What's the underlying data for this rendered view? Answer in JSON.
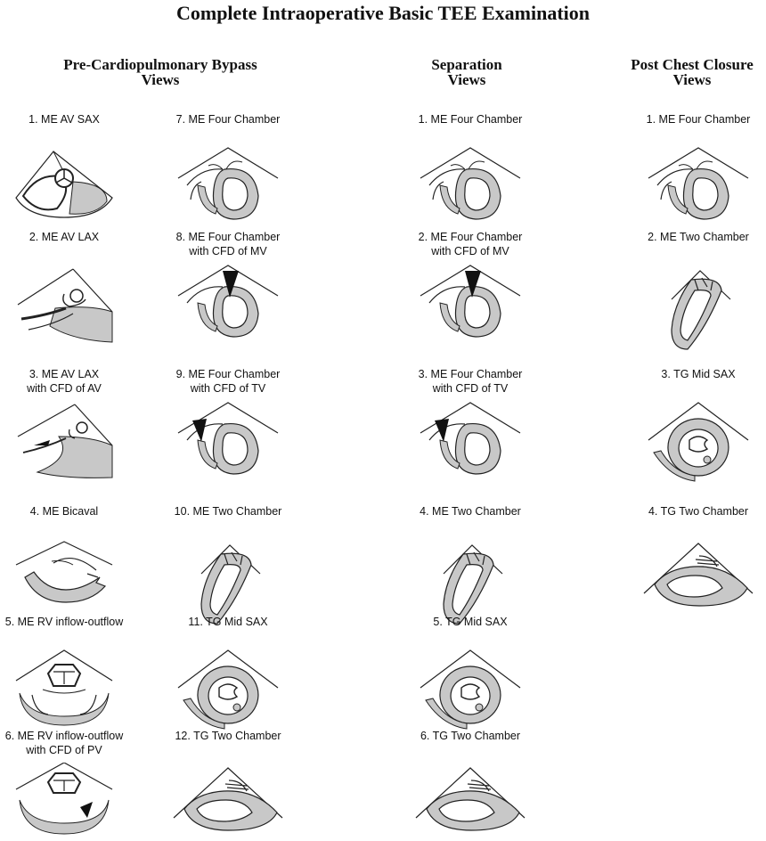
{
  "title": "Complete Intraoperative Basic TEE Examination",
  "headers": {
    "pre": [
      "Pre-Cardiopulmonary Bypass",
      "Views"
    ],
    "sep": [
      "Separation",
      "Views"
    ],
    "post": [
      "Post Chest Closure",
      "Views"
    ]
  },
  "views": {
    "pre1": {
      "line1": "1.  ME  AV  SAX",
      "line2": "",
      "icon": "av-sax-icon"
    },
    "pre2": {
      "line1": "2.  ME  AV  LAX",
      "line2": "",
      "icon": "av-lax-icon"
    },
    "pre3": {
      "line1": "3.  ME  AV  LAX",
      "line2": "with CFD of AV",
      "icon": "av-lax-cfd-icon"
    },
    "pre4": {
      "line1": "4.  ME  Bicaval",
      "line2": "",
      "icon": "bicaval-icon"
    },
    "pre5": {
      "line1": "5.  ME  RV  inflow-outflow",
      "line2": "",
      "icon": "rv-inflow-outflow-icon"
    },
    "pre6": {
      "line1": "6.  ME RV  inflow-outflow",
      "line2": "with CFD of PV",
      "icon": "rv-inflow-outflow-cfd-icon"
    },
    "pre7": {
      "line1": "7.  ME  Four  Chamber",
      "line2": "",
      "icon": "four-chamber-icon"
    },
    "pre8": {
      "line1": "8.  ME  Four  Chamber",
      "line2": "with CFD of MV",
      "icon": "four-chamber-cfd-mv-icon"
    },
    "pre9": {
      "line1": "9.  ME  Four  Chamber",
      "line2": "with CFD of TV",
      "icon": "four-chamber-cfd-tv-icon"
    },
    "pre10": {
      "line1": "10.  ME  Two  Chamber",
      "line2": "",
      "icon": "two-chamber-icon"
    },
    "pre11": {
      "line1": "11.  TG  Mid  SAX",
      "line2": "",
      "icon": "tg-mid-sax-icon"
    },
    "pre12": {
      "line1": "12.  TG  Two  Chamber",
      "line2": "",
      "icon": "tg-two-chamber-icon"
    },
    "sep1": {
      "line1": "1.  ME  Four  Chamber",
      "line2": "",
      "icon": "four-chamber-icon"
    },
    "sep2": {
      "line1": "2.  ME  Four  Chamber",
      "line2": "with CFD of MV",
      "icon": "four-chamber-cfd-mv-icon"
    },
    "sep3": {
      "line1": "3.  ME  Four  Chamber",
      "line2": "with CFD of TV",
      "icon": "four-chamber-cfd-tv-icon"
    },
    "sep4": {
      "line1": "4.  ME  Two  Chamber",
      "line2": "",
      "icon": "two-chamber-icon"
    },
    "sep5": {
      "line1": "5.  TG  Mid  SAX",
      "line2": "",
      "icon": "tg-mid-sax-icon"
    },
    "sep6": {
      "line1": "6.  TG  Two  Chamber",
      "line2": "",
      "icon": "tg-two-chamber-icon"
    },
    "post1": {
      "line1": "1.  ME  Four  Chamber",
      "line2": "",
      "icon": "four-chamber-icon"
    },
    "post2": {
      "line1": "2.  ME  Two  Chamber",
      "line2": "",
      "icon": "two-chamber-icon"
    },
    "post3": {
      "line1": "3.  TG  Mid SAX",
      "line2": "",
      "icon": "tg-mid-sax-icon"
    },
    "post4": {
      "line1": "4.  TG  Two  Chamber",
      "line2": "",
      "icon": "tg-two-chamber-icon"
    }
  },
  "colors": {
    "myocardium": "#c8c8c8",
    "outline": "#222222",
    "jet": "#111111"
  }
}
